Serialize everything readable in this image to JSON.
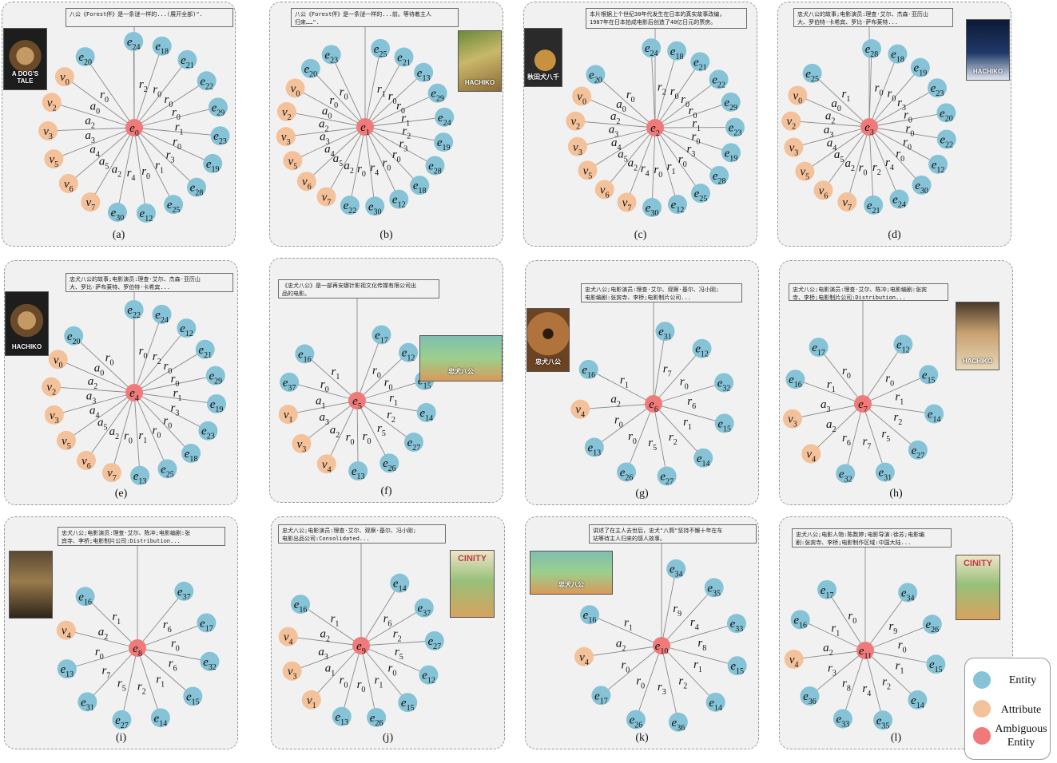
{
  "colors": {
    "entity": "#86c3d6",
    "attribute": "#f3c19a",
    "ambiguous": "#f07a7a",
    "panel_bg": "#f1f1f1"
  },
  "legend": {
    "entity": "Entity",
    "attribute": "Attribute",
    "ambiguous": "Ambiguous\nEntity"
  },
  "panels": [
    {
      "caption": "(a)",
      "center": "e0",
      "desc": "八公《Forest伴》是一条谜一样的...(展开全部)\".",
      "poster": {
        "kind": "dog-portrait",
        "text": "A DOG'S TALE"
      },
      "nodes": [
        {
          "t": "e",
          "label": "e24",
          "edge": "r2"
        },
        {
          "t": "e",
          "label": "e18",
          "edge": "r0"
        },
        {
          "t": "e",
          "label": "e21",
          "edge": "r0"
        },
        {
          "t": "e",
          "label": "e22",
          "edge": "r0"
        },
        {
          "t": "e",
          "label": "e29",
          "edge": "r1"
        },
        {
          "t": "e",
          "label": "e23",
          "edge": "r0"
        },
        {
          "t": "e",
          "label": "e19",
          "edge": "r3"
        },
        {
          "t": "e",
          "label": "e28",
          "edge": "r1"
        },
        {
          "t": "e",
          "label": "e25",
          "edge": "r0"
        },
        {
          "t": "e",
          "label": "e12",
          "edge": "r4"
        },
        {
          "t": "e",
          "label": "e30",
          "edge": "a2"
        },
        {
          "t": "a",
          "label": "v7",
          "edge": "a5"
        },
        {
          "t": "a",
          "label": "v6",
          "edge": "a4"
        },
        {
          "t": "a",
          "label": "v5",
          "edge": "a3"
        },
        {
          "t": "a",
          "label": "v3",
          "edge": "a2"
        },
        {
          "t": "a",
          "label": "v2",
          "edge": "a0"
        },
        {
          "t": "a",
          "label": "v0",
          "edge": "r0"
        },
        {
          "t": "e",
          "label": "e20",
          "edge": ""
        }
      ]
    },
    {
      "caption": "(b)",
      "center": "e1",
      "desc": "八公《Forest伴》是一条谜一样的...前。等待着主人\n归来……\".",
      "poster": {
        "kind": "hachiko-green",
        "text": "HACHIKO"
      },
      "nodes": [
        {
          "t": "e",
          "label": "e25",
          "edge": "r1"
        },
        {
          "t": "e",
          "label": "e21",
          "edge": "r0"
        },
        {
          "t": "e",
          "label": "e13",
          "edge": "r0"
        },
        {
          "t": "e",
          "label": "e29",
          "edge": "r1"
        },
        {
          "t": "e",
          "label": "e24",
          "edge": "r2"
        },
        {
          "t": "e",
          "label": "e19",
          "edge": "r3"
        },
        {
          "t": "e",
          "label": "e28",
          "edge": "r0"
        },
        {
          "t": "e",
          "label": "e18",
          "edge": "r0"
        },
        {
          "t": "e",
          "label": "e12",
          "edge": "r4"
        },
        {
          "t": "e",
          "label": "e30",
          "edge": "r0"
        },
        {
          "t": "e",
          "label": "e22",
          "edge": "a2"
        },
        {
          "t": "a",
          "label": "v7",
          "edge": "a5"
        },
        {
          "t": "a",
          "label": "v6",
          "edge": "a4"
        },
        {
          "t": "a",
          "label": "v5",
          "edge": "a3"
        },
        {
          "t": "a",
          "label": "v3",
          "edge": "a2"
        },
        {
          "t": "a",
          "label": "v2",
          "edge": "a0"
        },
        {
          "t": "a",
          "label": "v0",
          "edge": "r0"
        },
        {
          "t": "e",
          "label": "e20",
          "edge": "r0"
        },
        {
          "t": "e",
          "label": "e23",
          "edge": ""
        }
      ]
    },
    {
      "caption": "(c)",
      "center": "e2",
      "desc": "本片根据上个世纪30年代发生在日本的真实故事改编，\n1987年在日本拍成电影后创造了40亿日元的票房。",
      "poster": {
        "kind": "akita",
        "text": "秋田犬八千"
      },
      "nodes": [
        {
          "t": "e",
          "label": "e24",
          "edge": "r2"
        },
        {
          "t": "e",
          "label": "e18",
          "edge": "r0"
        },
        {
          "t": "e",
          "label": "e21",
          "edge": "r0"
        },
        {
          "t": "e",
          "label": "e22",
          "edge": "r0"
        },
        {
          "t": "e",
          "label": "e29",
          "edge": "r1"
        },
        {
          "t": "e",
          "label": "e23",
          "edge": "r0"
        },
        {
          "t": "e",
          "label": "e19",
          "edge": "r3"
        },
        {
          "t": "e",
          "label": "e28",
          "edge": "r0"
        },
        {
          "t": "e",
          "label": "e25",
          "edge": "r1"
        },
        {
          "t": "e",
          "label": "e12",
          "edge": "r0"
        },
        {
          "t": "e",
          "label": "e30",
          "edge": "r4"
        },
        {
          "t": "a",
          "label": "v7",
          "edge": "a2"
        },
        {
          "t": "a",
          "label": "v6",
          "edge": "a5"
        },
        {
          "t": "a",
          "label": "v5",
          "edge": "a4"
        },
        {
          "t": "a",
          "label": "v3",
          "edge": "a3"
        },
        {
          "t": "a",
          "label": "v2",
          "edge": "a2"
        },
        {
          "t": "a",
          "label": "v0",
          "edge": "a0"
        },
        {
          "t": "e",
          "label": "e20",
          "edge": "r0"
        }
      ]
    },
    {
      "caption": "(d)",
      "center": "e3",
      "desc": "忠犬八公的故事;电影演员:理查·艾尔、杰森·亚历山\n大、罗伯特·卡希宾、罗比·萨布莱特...",
      "poster": {
        "kind": "hachiko-night",
        "text": "HACHIKO"
      },
      "nodes": [
        {
          "t": "e",
          "label": "e28",
          "edge": "r0"
        },
        {
          "t": "e",
          "label": "e18",
          "edge": "r0"
        },
        {
          "t": "e",
          "label": "e19",
          "edge": "r3"
        },
        {
          "t": "e",
          "label": "e23",
          "edge": "r0"
        },
        {
          "t": "e",
          "label": "e20",
          "edge": "r0"
        },
        {
          "t": "e",
          "label": "e22",
          "edge": "r0"
        },
        {
          "t": "e",
          "label": "e12",
          "edge": "r0"
        },
        {
          "t": "e",
          "label": "e30",
          "edge": "r4"
        },
        {
          "t": "e",
          "label": "e24",
          "edge": "r2"
        },
        {
          "t": "e",
          "label": "e21",
          "edge": "r0"
        },
        {
          "t": "a",
          "label": "v7",
          "edge": "a2"
        },
        {
          "t": "a",
          "label": "v6",
          "edge": "a5"
        },
        {
          "t": "a",
          "label": "v5",
          "edge": "a4"
        },
        {
          "t": "a",
          "label": "v3",
          "edge": "a3"
        },
        {
          "t": "a",
          "label": "v2",
          "edge": "a2"
        },
        {
          "t": "a",
          "label": "v0",
          "edge": "a0"
        },
        {
          "t": "e",
          "label": "e25",
          "edge": "r1"
        }
      ]
    },
    {
      "caption": "(e)",
      "center": "e4",
      "desc": "忠犬八公的故事;电影演员:理查·艾尔、杰森·亚历山\n大、罗比·萨布莱特、罗伯特·卡希宾...",
      "poster": {
        "kind": "dog-portrait",
        "text": "HACHIKO"
      },
      "nodes": [
        {
          "t": "e",
          "label": "e22",
          "edge": "r0"
        },
        {
          "t": "e",
          "label": "e24",
          "edge": "r2"
        },
        {
          "t": "e",
          "label": "e12",
          "edge": "r0"
        },
        {
          "t": "e",
          "label": "e21",
          "edge": "r0"
        },
        {
          "t": "e",
          "label": "e29",
          "edge": "r1"
        },
        {
          "t": "e",
          "label": "e19",
          "edge": "r3"
        },
        {
          "t": "e",
          "label": "e23",
          "edge": "r0"
        },
        {
          "t": "e",
          "label": "e18",
          "edge": "r0"
        },
        {
          "t": "e",
          "label": "e25",
          "edge": "r1"
        },
        {
          "t": "e",
          "label": "e13",
          "edge": "r0"
        },
        {
          "t": "a",
          "label": "v7",
          "edge": "a2"
        },
        {
          "t": "a",
          "label": "v6",
          "edge": "a5"
        },
        {
          "t": "a",
          "label": "v5",
          "edge": "a4"
        },
        {
          "t": "a",
          "label": "v3",
          "edge": "a3"
        },
        {
          "t": "a",
          "label": "v2",
          "edge": "a2"
        },
        {
          "t": "a",
          "label": "v0",
          "edge": "a0"
        },
        {
          "t": "e",
          "label": "e20",
          "edge": "r0"
        }
      ]
    },
    {
      "caption": "(f)",
      "center": "e5",
      "desc": "《忠犬八公》是一部再安娜针影视文化传媒有限公司出\n品的电影。",
      "poster": {
        "kind": "cartoon",
        "text": "忠犬八公"
      },
      "nodes": [
        {
          "t": "e",
          "label": "e17",
          "edge": "r0"
        },
        {
          "t": "e",
          "label": "e12",
          "edge": "r0"
        },
        {
          "t": "e",
          "label": "e15",
          "edge": "r1"
        },
        {
          "t": "e",
          "label": "e14",
          "edge": "r2"
        },
        {
          "t": "e",
          "label": "e27",
          "edge": "r5"
        },
        {
          "t": "e",
          "label": "e26",
          "edge": "r0"
        },
        {
          "t": "e",
          "label": "e13",
          "edge": "r0"
        },
        {
          "t": "a",
          "label": "v4",
          "edge": "a2"
        },
        {
          "t": "a",
          "label": "v3",
          "edge": "a3"
        },
        {
          "t": "a",
          "label": "v1",
          "edge": "a1"
        },
        {
          "t": "e",
          "label": "e37",
          "edge": "r0"
        },
        {
          "t": "e",
          "label": "e16",
          "edge": "r1"
        }
      ]
    },
    {
      "caption": "(g)",
      "center": "e6",
      "desc": "忠犬八公;电影演员:理查·艾尔、观察·基尔、冯小刚;\n电影编剧:张宾寺、李桥;电影制片公司...",
      "poster": {
        "kind": "paw",
        "text": "忠犬八公"
      },
      "nodes": [
        {
          "t": "e",
          "label": "e31",
          "edge": "r7"
        },
        {
          "t": "e",
          "label": "e12",
          "edge": "r0"
        },
        {
          "t": "e",
          "label": "e32",
          "edge": "r6"
        },
        {
          "t": "e",
          "label": "e15",
          "edge": "r1"
        },
        {
          "t": "e",
          "label": "e14",
          "edge": "r2"
        },
        {
          "t": "e",
          "label": "e27",
          "edge": "r5"
        },
        {
          "t": "e",
          "label": "e26",
          "edge": "r0"
        },
        {
          "t": "e",
          "label": "e13",
          "edge": "r0"
        },
        {
          "t": "a",
          "label": "v4",
          "edge": "a2"
        },
        {
          "t": "e",
          "label": "e16",
          "edge": "r1"
        }
      ]
    },
    {
      "caption": "(h)",
      "center": "e7",
      "desc": "忠犬八公;电影演员:理查·艾尔、陈冲;电影编剧:张宾\n寺、李桥;电影制片公司:Distribution...",
      "poster": {
        "kind": "hachiko-cream",
        "text": "HACHIKO"
      },
      "nodes": [
        {
          "t": "e",
          "label": "e12",
          "edge": "r0"
        },
        {
          "t": "e",
          "label": "e15",
          "edge": "r1"
        },
        {
          "t": "e",
          "label": "e14",
          "edge": "r2"
        },
        {
          "t": "e",
          "label": "e27",
          "edge": "r5"
        },
        {
          "t": "e",
          "label": "e31",
          "edge": "r7"
        },
        {
          "t": "e",
          "label": "e32",
          "edge": "r6"
        },
        {
          "t": "a",
          "label": "v4",
          "edge": "a2"
        },
        {
          "t": "a",
          "label": "v3",
          "edge": "a3"
        },
        {
          "t": "e",
          "label": "e16",
          "edge": "r1"
        },
        {
          "t": "e",
          "label": "e17",
          "edge": "r0"
        }
      ]
    },
    {
      "caption": "(i)",
      "center": "e8",
      "desc": "忠犬八公;电影演员:理查·艾尔、陈冲;电影编剧:张\n宾寺、李桥;电影制片公司:Distribution...",
      "poster": {
        "kind": "street",
        "text": ""
      },
      "nodes": [
        {
          "t": "e",
          "label": "e37",
          "edge": "r6"
        },
        {
          "t": "e",
          "label": "e17",
          "edge": "r0"
        },
        {
          "t": "e",
          "label": "e32",
          "edge": "r6"
        },
        {
          "t": "e",
          "label": "e15",
          "edge": "r1"
        },
        {
          "t": "e",
          "label": "e14",
          "edge": "r2"
        },
        {
          "t": "e",
          "label": "e27",
          "edge": "r5"
        },
        {
          "t": "e",
          "label": "e31",
          "edge": "r7"
        },
        {
          "t": "e",
          "label": "e13",
          "edge": "r0"
        },
        {
          "t": "a",
          "label": "v4",
          "edge": "a2"
        },
        {
          "t": "e",
          "label": "e16",
          "edge": "r1"
        }
      ]
    },
    {
      "caption": "(j)",
      "center": "e9",
      "desc": "忠犬八公;电影演员:理查·艾尔、观察·基尔、冯小刚;\n电影出品公司:Consolidated...",
      "poster": {
        "kind": "cinity",
        "text": "CINITY"
      },
      "nodes": [
        {
          "t": "e",
          "label": "e14",
          "edge": "r6"
        },
        {
          "t": "e",
          "label": "e37",
          "edge": "r2"
        },
        {
          "t": "e",
          "label": "e27",
          "edge": "r5"
        },
        {
          "t": "e",
          "label": "e12",
          "edge": "r0"
        },
        {
          "t": "e",
          "label": "e15",
          "edge": "r1"
        },
        {
          "t": "e",
          "label": "e26",
          "edge": "r0"
        },
        {
          "t": "e",
          "label": "e13",
          "edge": "r0"
        },
        {
          "t": "a",
          "label": "v1",
          "edge": "a1"
        },
        {
          "t": "a",
          "label": "v3",
          "edge": "a3"
        },
        {
          "t": "a",
          "label": "v4",
          "edge": "a2"
        },
        {
          "t": "e",
          "label": "e16",
          "edge": "r1"
        }
      ]
    },
    {
      "caption": "(k)",
      "center": "e10",
      "desc": "讲述了在主人去世后，忠犬\"八筒\"坚持不懈十年在车\n站等待主人归来的感人故事。",
      "poster": {
        "kind": "cartoon",
        "text": "忠犬八公"
      },
      "nodes": [
        {
          "t": "e",
          "label": "e34",
          "edge": "r9"
        },
        {
          "t": "e",
          "label": "e35",
          "edge": "r4"
        },
        {
          "t": "e",
          "label": "e33",
          "edge": "r8"
        },
        {
          "t": "e",
          "label": "e15",
          "edge": "r1"
        },
        {
          "t": "e",
          "label": "e14",
          "edge": "r2"
        },
        {
          "t": "e",
          "label": "e36",
          "edge": "r3"
        },
        {
          "t": "e",
          "label": "e26",
          "edge": "r0"
        },
        {
          "t": "e",
          "label": "e17",
          "edge": "r0"
        },
        {
          "t": "a",
          "label": "v4",
          "edge": "a2"
        },
        {
          "t": "e",
          "label": "e16",
          "edge": "r1"
        }
      ]
    },
    {
      "caption": "(l)",
      "center": "e11",
      "desc": "忠犬八公;电影人物:陈数婷;电影导演:徐苏;电影编\n剧:张宾寺、李桥;电影制作区域:中国大陆...",
      "poster": {
        "kind": "cinity",
        "text": "CINITY"
      },
      "nodes": [
        {
          "t": "e",
          "label": "e34",
          "edge": "r9"
        },
        {
          "t": "e",
          "label": "e26",
          "edge": "r0"
        },
        {
          "t": "e",
          "label": "e15",
          "edge": "r1"
        },
        {
          "t": "e",
          "label": "e14",
          "edge": "r2"
        },
        {
          "t": "e",
          "label": "e35",
          "edge": "r4"
        },
        {
          "t": "e",
          "label": "e33",
          "edge": "r8"
        },
        {
          "t": "e",
          "label": "e36",
          "edge": "r3"
        },
        {
          "t": "a",
          "label": "v4",
          "edge": "a2"
        },
        {
          "t": "e",
          "label": "e16",
          "edge": "r1"
        },
        {
          "t": "e",
          "label": "e17",
          "edge": "r0"
        }
      ]
    }
  ]
}
